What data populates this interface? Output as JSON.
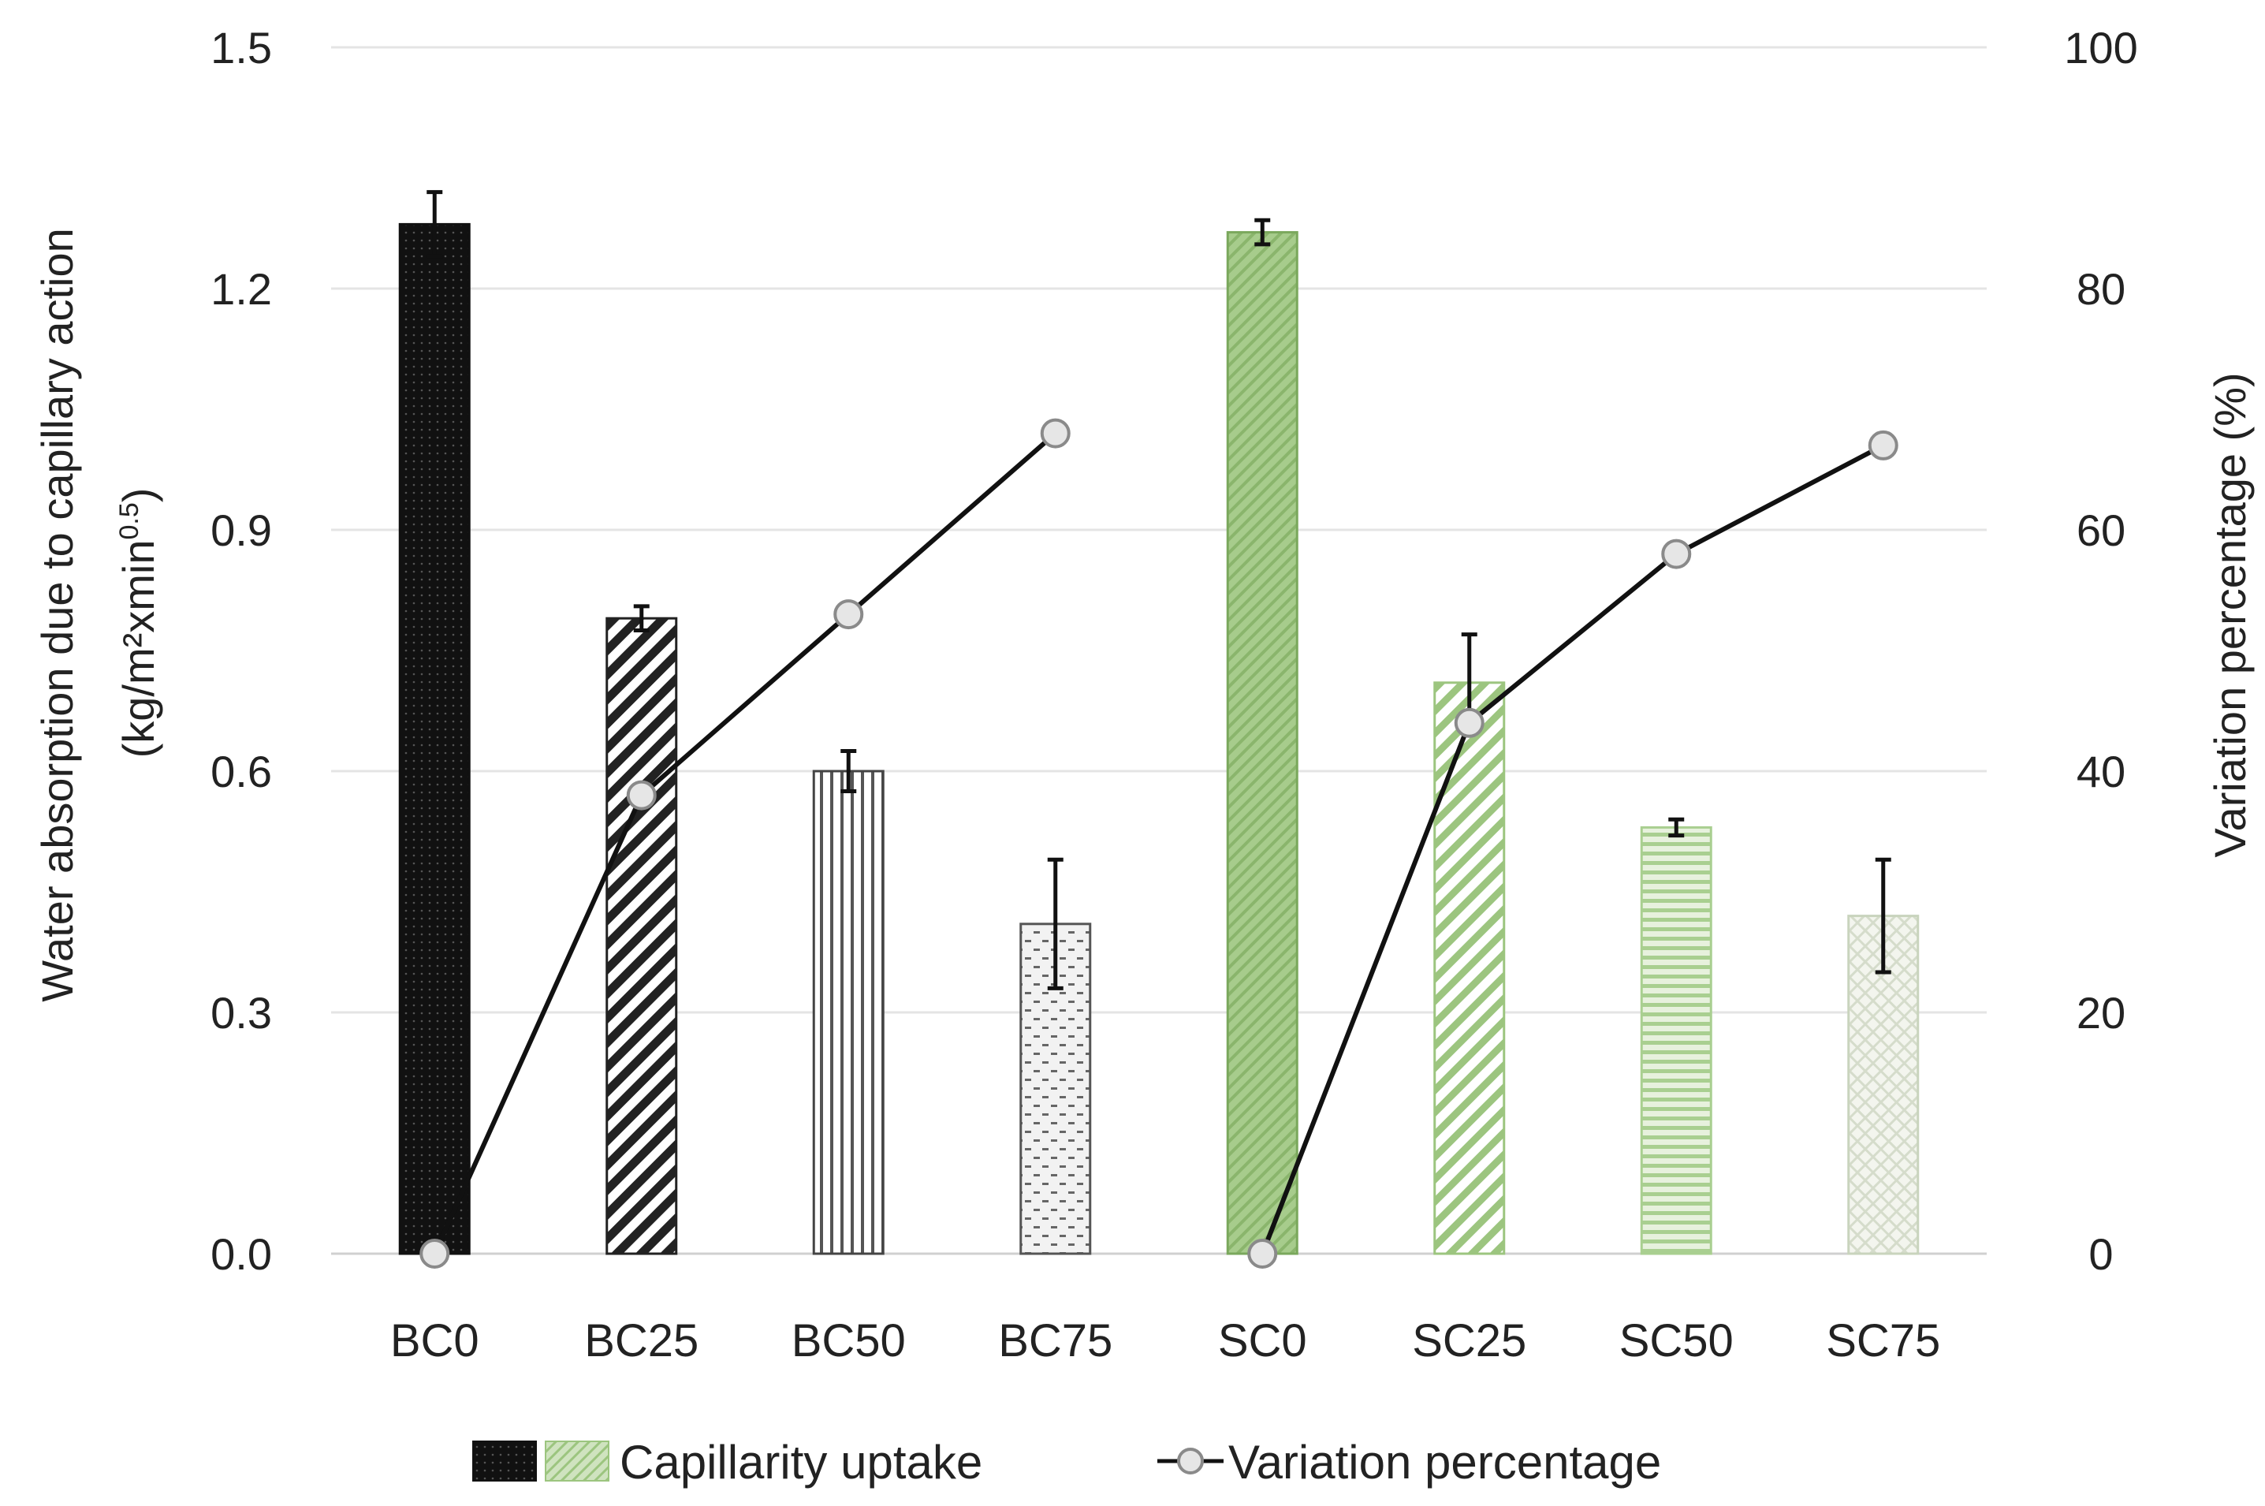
{
  "chart_data": {
    "type": "bar",
    "categories": [
      "BC0",
      "BC25",
      "BC50",
      "BC75",
      "SC0",
      "SC25",
      "SC50",
      "SC75"
    ],
    "series": [
      {
        "name": "Capillarity uptake",
        "axis": "left",
        "kind": "bar",
        "values": [
          1.28,
          0.79,
          0.6,
          0.41,
          1.27,
          0.71,
          0.53,
          0.42
        ],
        "errors": [
          0.04,
          0.015,
          0.025,
          0.08,
          0.015,
          0.06,
          0.01,
          0.07
        ]
      },
      {
        "name": "Variation percentage",
        "axis": "right",
        "kind": "line",
        "groups": [
          {
            "categories": [
              "BC0",
              "BC25",
              "BC50",
              "BC75"
            ],
            "values": [
              0,
              38,
              53,
              68
            ]
          },
          {
            "categories": [
              "SC0",
              "SC25",
              "SC50",
              "SC75"
            ],
            "values": [
              0,
              44,
              58,
              67
            ]
          }
        ]
      }
    ],
    "bar_styles": [
      {
        "fill": "#111111",
        "pattern": "dots"
      },
      {
        "fill": "#ffffff",
        "pattern": "diagonal",
        "stroke": "#222222"
      },
      {
        "fill": "#ffffff",
        "pattern": "vertical",
        "stroke": "#444444"
      },
      {
        "fill": "#ffffff",
        "pattern": "dashes",
        "stroke": "#555555"
      },
      {
        "fill": "#a7cc8c",
        "pattern": "diagonal-fine",
        "stroke": "#7aa85c"
      },
      {
        "fill": "#ffffff",
        "pattern": "diagonal",
        "stroke": "#9cc57f"
      },
      {
        "fill": "#ffffff",
        "pattern": "horizontal",
        "stroke": "#a9cf90"
      },
      {
        "fill": "#f3f5ee",
        "pattern": "crosshatch",
        "stroke": "#c9d4bd"
      }
    ],
    "y_left": {
      "label_line1": "Water absorption due to capillary action",
      "label_unit": "(kg/m²xmin",
      "label_sup": "0.5",
      "label_close": ")",
      "lim": [
        0,
        1.5
      ],
      "ticks": [
        "0.0",
        "0.3",
        "0.6",
        "0.9",
        "1.2",
        "1.5"
      ]
    },
    "y_right": {
      "label": "Variation percentage (%)",
      "lim": [
        0,
        100
      ],
      "ticks": [
        "0",
        "20",
        "40",
        "60",
        "80",
        "100"
      ]
    },
    "grid": true,
    "legend": {
      "position": "bottom",
      "bar_label": "Capillarity uptake",
      "line_label": "Variation percentage"
    },
    "colors": {
      "grid": "#e4e4e4",
      "line": "#111111",
      "marker_fill": "#e6e6e6",
      "marker_stroke": "#8a8a8a",
      "error": "#111111"
    }
  }
}
